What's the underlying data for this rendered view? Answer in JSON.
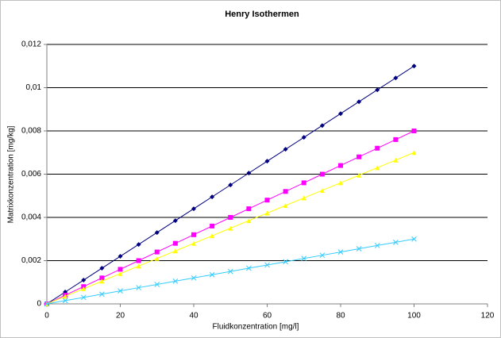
{
  "chart_data": {
    "type": "line",
    "title": "Henry Isothermen",
    "x_label": "Fluidkonzentration [mg/l]",
    "y_label": "Matrixkonzentration [mg/kg]",
    "x": [
      0,
      5,
      10,
      15,
      20,
      25,
      30,
      35,
      40,
      45,
      50,
      55,
      60,
      65,
      70,
      75,
      80,
      85,
      90,
      95,
      100
    ],
    "series": [
      {
        "color": "#000080",
        "marker": "diamond",
        "values": [
          0,
          0.00055,
          0.0011,
          0.00165,
          0.0022,
          0.00275,
          0.0033,
          0.00385,
          0.0044,
          0.00495,
          0.0055,
          0.00605,
          0.0066,
          0.00715,
          0.0077,
          0.00825,
          0.0088,
          0.00935,
          0.0099,
          0.01045,
          0.011
        ]
      },
      {
        "color": "#ff00ff",
        "marker": "square",
        "values": [
          0,
          0.0004,
          0.0008,
          0.0012,
          0.0016,
          0.002,
          0.0024,
          0.0028,
          0.0032,
          0.0036,
          0.004,
          0.0044,
          0.0048,
          0.0052,
          0.0056,
          0.006,
          0.0064,
          0.0068,
          0.0072,
          0.0076,
          0.008
        ]
      },
      {
        "color": "#ffff00",
        "marker": "triangle",
        "values": [
          0,
          0.00035,
          0.0007,
          0.00105,
          0.0014,
          0.00175,
          0.0021,
          0.00245,
          0.0028,
          0.00315,
          0.0035,
          0.00385,
          0.0042,
          0.00455,
          0.0049,
          0.00525,
          0.0056,
          0.00595,
          0.0063,
          0.00665,
          0.007
        ]
      },
      {
        "color": "#33ccff",
        "marker": "x",
        "values": [
          0,
          0.00015,
          0.0003,
          0.00045,
          0.0006,
          0.00075,
          0.0009,
          0.00105,
          0.0012,
          0.00135,
          0.0015,
          0.00165,
          0.0018,
          0.00195,
          0.0021,
          0.00225,
          0.0024,
          0.00255,
          0.0027,
          0.00285,
          0.003
        ]
      }
    ],
    "xlim": [
      0,
      120
    ],
    "xticks": [
      0,
      20,
      40,
      60,
      80,
      100,
      120
    ],
    "ylim": [
      0,
      0.012
    ],
    "yticks": [
      0,
      {
        "value": 0.002,
        "label": "0,002"
      },
      {
        "value": 0.004,
        "label": "0,004"
      },
      {
        "value": 0.006,
        "label": "0,006"
      },
      {
        "value": 0.008,
        "label": "0,008"
      },
      {
        "value": 0.01,
        "label": "0,01"
      },
      {
        "value": 0.012,
        "label": "0,012"
      }
    ],
    "grid": true
  }
}
